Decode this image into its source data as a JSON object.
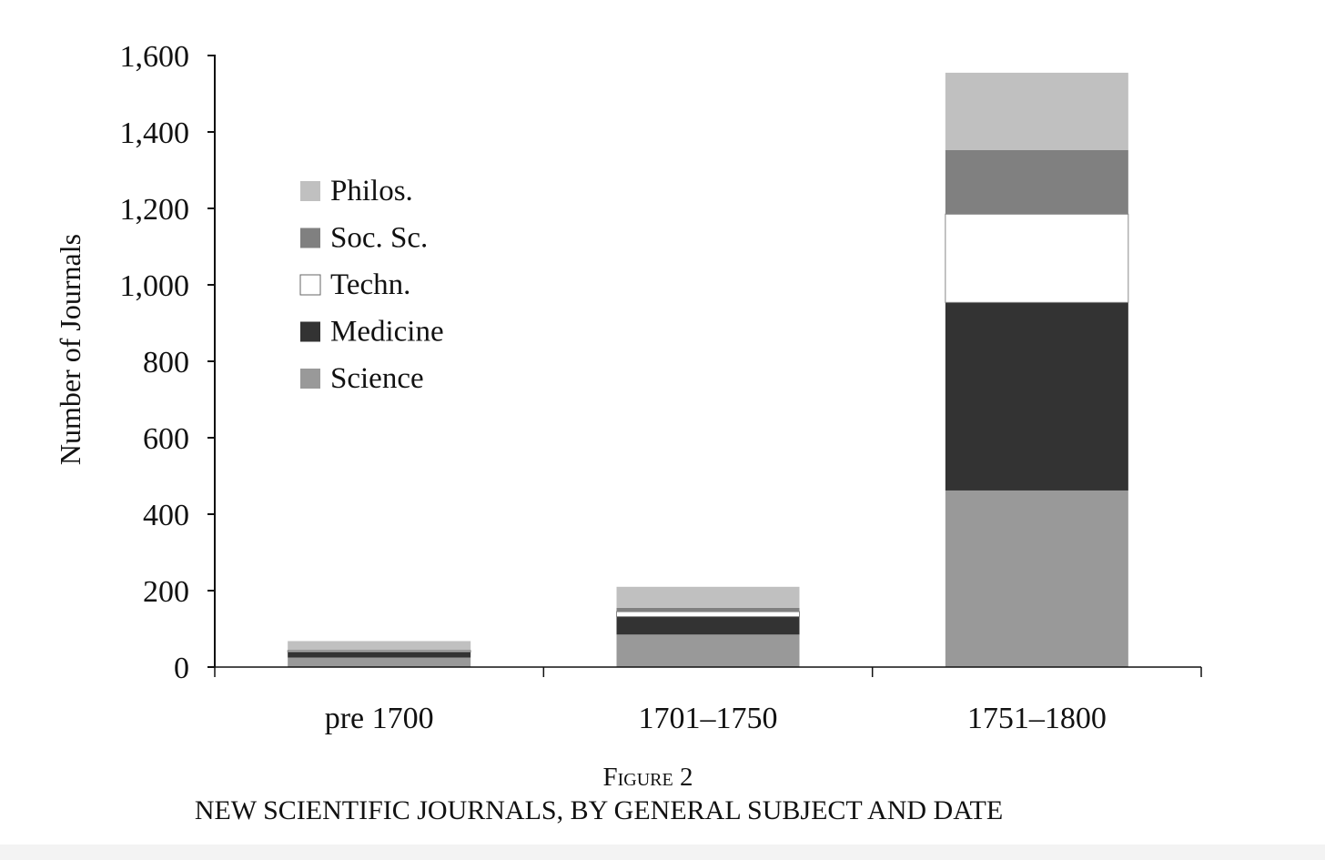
{
  "chart_data": {
    "type": "bar",
    "stacked": true,
    "categories": [
      "pre 1700",
      "1701–1750",
      "1751–1800"
    ],
    "series": [
      {
        "name": "Science",
        "values": [
          25,
          85,
          462
        ],
        "color": "#999999"
      },
      {
        "name": "Medicine",
        "values": [
          15,
          47,
          492
        ],
        "color": "#333333"
      },
      {
        "name": "Techn.",
        "values": [
          3,
          13,
          231
        ],
        "color": "#ffffff"
      },
      {
        "name": "Soc. Sc.",
        "values": [
          2,
          10,
          168
        ],
        "color": "#808080"
      },
      {
        "name": "Philos.",
        "values": [
          23,
          55,
          202
        ],
        "color": "#c0c0c0"
      }
    ],
    "legend_order": [
      "Philos.",
      "Soc. Sc.",
      "Techn.",
      "Medicine",
      "Science"
    ],
    "ylabel": "Number of Journals",
    "xlabel": "",
    "ylim": [
      0,
      1600
    ],
    "yticks": [
      0,
      200,
      400,
      600,
      800,
      1000,
      1200,
      1400,
      1600
    ],
    "ytick_labels": [
      "0",
      "200",
      "400",
      "600",
      "800",
      "1,000",
      "1,200",
      "1,400",
      "1,600"
    ],
    "grid": false,
    "legend_position": "top-left"
  },
  "caption": {
    "label": "Figure 2",
    "title": "NEW SCIENTIFIC JOURNALS, BY GENERAL SUBJECT AND DATE"
  }
}
